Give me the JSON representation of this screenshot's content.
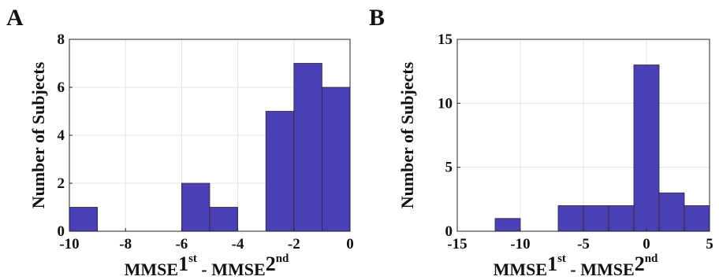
{
  "chart_data": [
    {
      "panel_label": "A",
      "type": "bar",
      "bins": [
        {
          "x0": -10,
          "x1": -9,
          "count": 1
        },
        {
          "x0": -6,
          "x1": -5,
          "count": 2
        },
        {
          "x0": -5,
          "x1": -4,
          "count": 1
        },
        {
          "x0": -3,
          "x1": -2,
          "count": 5
        },
        {
          "x0": -2,
          "x1": -1,
          "count": 7
        },
        {
          "x0": -1,
          "x1": 0,
          "count": 6
        }
      ],
      "xlim": [
        -10,
        0
      ],
      "ylim": [
        0,
        8
      ],
      "xticks": [
        -10,
        -8,
        -6,
        -4,
        -2,
        0
      ],
      "yticks": [
        0,
        2,
        4,
        6,
        8
      ],
      "xlabel": {
        "a": "MMSE",
        "sup1": "st",
        "b": " - MMSE",
        "sup2": "nd"
      },
      "xlabel_digits": {
        "a": "1",
        "b": "2"
      },
      "ylabel": "Number of Subjects",
      "grid": true,
      "bar_color": "#4a3fb5"
    },
    {
      "panel_label": "B",
      "type": "bar",
      "bins": [
        {
          "x0": -12,
          "x1": -10,
          "count": 1
        },
        {
          "x0": -7,
          "x1": -5,
          "count": 2
        },
        {
          "x0": -5,
          "x1": -3,
          "count": 2
        },
        {
          "x0": -3,
          "x1": -1,
          "count": 2
        },
        {
          "x0": -1,
          "x1": 1,
          "count": 13
        },
        {
          "x0": 1,
          "x1": 3,
          "count": 3
        },
        {
          "x0": 3,
          "x1": 5,
          "count": 2
        }
      ],
      "xlim": [
        -15,
        5
      ],
      "ylim": [
        0,
        15
      ],
      "xticks": [
        -15,
        -10,
        -5,
        0,
        5
      ],
      "yticks": [
        0,
        5,
        10,
        15
      ],
      "xlabel": {
        "a": "MMSE",
        "sup1": "st",
        "b": " - MMSE",
        "sup2": "nd"
      },
      "xlabel_digits": {
        "a": "1",
        "b": "2"
      },
      "ylabel": "Number of Subjects",
      "grid": true,
      "bar_color": "#4a3fb5"
    }
  ]
}
